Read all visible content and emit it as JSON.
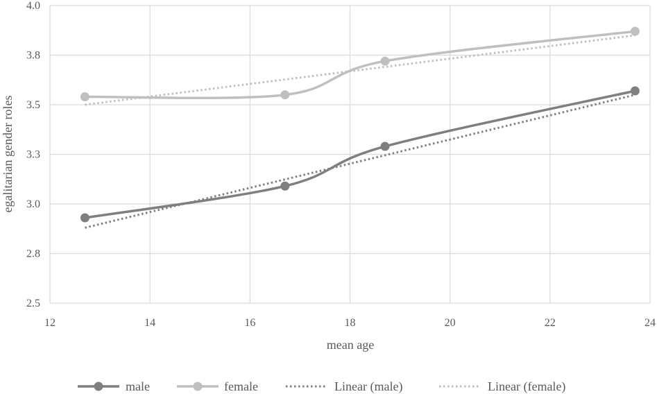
{
  "chart_data": {
    "type": "line",
    "title": "",
    "xlabel": "mean age",
    "ylabel": "egalitarian gender roles",
    "xlim": [
      12,
      24
    ],
    "ylim": [
      2.5,
      4.0
    ],
    "x_ticks": [
      "12",
      "14",
      "16",
      "18",
      "20",
      "22",
      "24"
    ],
    "y_ticks": [
      "2.5",
      "2.8",
      "3.0",
      "3.3",
      "3.5",
      "3.8",
      "4.0"
    ],
    "grid": true,
    "legend_position": "bottom",
    "series": [
      {
        "name": "male",
        "style": "solid-markers",
        "color": "#7f7f7f",
        "x": [
          12.7,
          16.7,
          18.7,
          23.7
        ],
        "y": [
          2.93,
          3.09,
          3.29,
          3.57
        ]
      },
      {
        "name": "female",
        "style": "solid-markers",
        "color": "#bfbfbf",
        "x": [
          12.7,
          16.7,
          18.7,
          23.7
        ],
        "y": [
          3.54,
          3.55,
          3.72,
          3.87
        ]
      },
      {
        "name": "Linear (male)",
        "style": "dotted",
        "color": "#7f7f7f",
        "x": [
          12.7,
          23.7
        ],
        "y": [
          2.88,
          3.55
        ]
      },
      {
        "name": "Linear (female)",
        "style": "dotted",
        "color": "#bfbfbf",
        "x": [
          12.7,
          23.7
        ],
        "y": [
          3.5,
          3.85
        ]
      }
    ]
  }
}
